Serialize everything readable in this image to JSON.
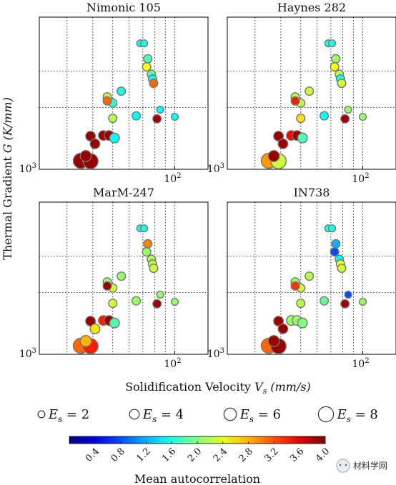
{
  "chart_data": {
    "type": "scatter",
    "panels": [
      {
        "title": "Nimonic 105",
        "points": [
          {
            "x": 35,
            "y": 1100,
            "es": 8,
            "c": 3.9
          },
          {
            "x": 39,
            "y": 1095,
            "es": 8,
            "c": 3.9
          },
          {
            "x": 37,
            "y": 1160,
            "es": 5,
            "c": 3.9
          },
          {
            "x": 39,
            "y": 1450,
            "es": 4,
            "c": 3.9
          },
          {
            "x": 41,
            "y": 1330,
            "es": 4,
            "c": 3.9
          },
          {
            "x": 45,
            "y": 1460,
            "es": 4,
            "c": 3.9
          },
          {
            "x": 48,
            "y": 1460,
            "es": 4,
            "c": 3.9
          },
          {
            "x": 51,
            "y": 1420,
            "es": 4,
            "c": 1.5
          },
          {
            "x": 47,
            "y": 2250,
            "es": 3,
            "c": 2.2
          },
          {
            "x": 50,
            "y": 2100,
            "es": 3,
            "c": 1.7
          },
          {
            "x": 50,
            "y": 1770,
            "es": 3,
            "c": 2.2
          },
          {
            "x": 47,
            "y": 2150,
            "es": 3,
            "c": 3.1
          },
          {
            "x": 55,
            "y": 2400,
            "es": 3,
            "c": 1.6
          },
          {
            "x": 65,
            "y": 1820,
            "es": 3,
            "c": 1.5
          },
          {
            "x": 68,
            "y": 4100,
            "es": 2,
            "c": 1.6
          },
          {
            "x": 71,
            "y": 4100,
            "es": 2,
            "c": 1.6
          },
          {
            "x": 74,
            "y": 3450,
            "es": 3,
            "c": 1.8
          },
          {
            "x": 73,
            "y": 3150,
            "es": 3,
            "c": 2.5
          },
          {
            "x": 77,
            "y": 2900,
            "es": 3,
            "c": 1.9
          },
          {
            "x": 78,
            "y": 2750,
            "es": 3,
            "c": 1.5
          },
          {
            "x": 79,
            "y": 2620,
            "es": 3,
            "c": 3.1
          },
          {
            "x": 82,
            "y": 1760,
            "es": 3,
            "c": 3.9
          },
          {
            "x": 85,
            "y": 1950,
            "es": 2,
            "c": 1.5
          },
          {
            "x": 100,
            "y": 1800,
            "es": 2,
            "c": 1.5
          }
        ]
      },
      {
        "title": "Haynes 282",
        "points": [
          {
            "x": 35,
            "y": 1100,
            "es": 8,
            "c": 2.9
          },
          {
            "x": 39,
            "y": 1095,
            "es": 8,
            "c": 2.3
          },
          {
            "x": 37,
            "y": 1160,
            "es": 5,
            "c": 3.9
          },
          {
            "x": 39,
            "y": 1450,
            "es": 4,
            "c": 3.9
          },
          {
            "x": 41,
            "y": 1330,
            "es": 4,
            "c": 3.9
          },
          {
            "x": 45,
            "y": 1460,
            "es": 4,
            "c": 3.5
          },
          {
            "x": 48,
            "y": 1460,
            "es": 4,
            "c": 3.9
          },
          {
            "x": 51,
            "y": 1420,
            "es": 4,
            "c": 1.8
          },
          {
            "x": 47,
            "y": 2250,
            "es": 3,
            "c": 2.2
          },
          {
            "x": 50,
            "y": 2100,
            "es": 3,
            "c": 2.2
          },
          {
            "x": 50,
            "y": 1770,
            "es": 3,
            "c": 2.6
          },
          {
            "x": 47,
            "y": 2150,
            "es": 3,
            "c": 3.4
          },
          {
            "x": 55,
            "y": 2400,
            "es": 3,
            "c": 2.3
          },
          {
            "x": 65,
            "y": 1820,
            "es": 3,
            "c": 1.5
          },
          {
            "x": 68,
            "y": 4100,
            "es": 2,
            "c": 1.6
          },
          {
            "x": 71,
            "y": 4100,
            "es": 2,
            "c": 1.6
          },
          {
            "x": 74,
            "y": 3450,
            "es": 3,
            "c": 2.1
          },
          {
            "x": 73,
            "y": 3150,
            "es": 3,
            "c": 2.5
          },
          {
            "x": 77,
            "y": 2900,
            "es": 3,
            "c": 2.2
          },
          {
            "x": 78,
            "y": 2750,
            "es": 3,
            "c": 1.6
          },
          {
            "x": 79,
            "y": 2620,
            "es": 3,
            "c": 2.3
          },
          {
            "x": 82,
            "y": 1760,
            "es": 3,
            "c": 3.9
          },
          {
            "x": 85,
            "y": 1950,
            "es": 2,
            "c": 2.1
          },
          {
            "x": 100,
            "y": 1800,
            "es": 2,
            "c": 2.1
          }
        ]
      },
      {
        "title": "MarM-247",
        "points": [
          {
            "x": 35,
            "y": 1100,
            "es": 8,
            "c": 3.1
          },
          {
            "x": 39,
            "y": 1095,
            "es": 8,
            "c": 3.4
          },
          {
            "x": 37,
            "y": 1160,
            "es": 5,
            "c": 2.8
          },
          {
            "x": 39,
            "y": 1450,
            "es": 4,
            "c": 3.9
          },
          {
            "x": 41,
            "y": 1330,
            "es": 4,
            "c": 2.6
          },
          {
            "x": 45,
            "y": 1460,
            "es": 4,
            "c": 3.4
          },
          {
            "x": 48,
            "y": 1460,
            "es": 4,
            "c": 3.9
          },
          {
            "x": 51,
            "y": 1420,
            "es": 4,
            "c": 1.8
          },
          {
            "x": 47,
            "y": 2250,
            "es": 3,
            "c": 2.1
          },
          {
            "x": 50,
            "y": 2100,
            "es": 3,
            "c": 2.3
          },
          {
            "x": 50,
            "y": 1770,
            "es": 3,
            "c": 2.3
          },
          {
            "x": 47,
            "y": 2150,
            "es": 3,
            "c": 3.9
          },
          {
            "x": 55,
            "y": 2400,
            "es": 3,
            "c": 2.1
          },
          {
            "x": 65,
            "y": 1820,
            "es": 3,
            "c": 2.1
          },
          {
            "x": 68,
            "y": 4100,
            "es": 2,
            "c": 1.6
          },
          {
            "x": 71,
            "y": 4100,
            "es": 2,
            "c": 1.6
          },
          {
            "x": 74,
            "y": 3450,
            "es": 3,
            "c": 3.0
          },
          {
            "x": 73,
            "y": 3150,
            "es": 3,
            "c": 2.1
          },
          {
            "x": 77,
            "y": 2900,
            "es": 3,
            "c": 2.2
          },
          {
            "x": 78,
            "y": 2750,
            "es": 3,
            "c": 2.2
          },
          {
            "x": 79,
            "y": 2620,
            "es": 3,
            "c": 2.3
          },
          {
            "x": 82,
            "y": 1760,
            "es": 3,
            "c": 3.9
          },
          {
            "x": 85,
            "y": 1950,
            "es": 2,
            "c": 2.1
          },
          {
            "x": 100,
            "y": 1800,
            "es": 2,
            "c": 2.1
          }
        ]
      },
      {
        "title": "IN738",
        "points": [
          {
            "x": 35,
            "y": 1100,
            "es": 8,
            "c": 3.1
          },
          {
            "x": 39,
            "y": 1095,
            "es": 8,
            "c": 3.9
          },
          {
            "x": 37,
            "y": 1160,
            "es": 5,
            "c": 3.9
          },
          {
            "x": 39,
            "y": 1450,
            "es": 4,
            "c": 3.9
          },
          {
            "x": 41,
            "y": 1330,
            "es": 4,
            "c": 3.9
          },
          {
            "x": 45,
            "y": 1460,
            "es": 4,
            "c": 2.1
          },
          {
            "x": 48,
            "y": 1460,
            "es": 4,
            "c": 2.1
          },
          {
            "x": 51,
            "y": 1420,
            "es": 4,
            "c": 2.0
          },
          {
            "x": 47,
            "y": 2250,
            "es": 3,
            "c": 2.1
          },
          {
            "x": 50,
            "y": 2100,
            "es": 3,
            "c": 2.3
          },
          {
            "x": 50,
            "y": 1770,
            "es": 3,
            "c": 2.2
          },
          {
            "x": 47,
            "y": 2150,
            "es": 3,
            "c": 3.3
          },
          {
            "x": 55,
            "y": 2400,
            "es": 3,
            "c": 2.2
          },
          {
            "x": 65,
            "y": 1820,
            "es": 3,
            "c": 1.9
          },
          {
            "x": 68,
            "y": 4100,
            "es": 2,
            "c": 1.6
          },
          {
            "x": 71,
            "y": 4100,
            "es": 2,
            "c": 1.6
          },
          {
            "x": 74,
            "y": 3450,
            "es": 3,
            "c": 1.2
          },
          {
            "x": 73,
            "y": 3150,
            "es": 3,
            "c": 0.8
          },
          {
            "x": 77,
            "y": 2900,
            "es": 3,
            "c": 1.5
          },
          {
            "x": 78,
            "y": 2750,
            "es": 3,
            "c": 2.5
          },
          {
            "x": 79,
            "y": 2620,
            "es": 3,
            "c": 2.3
          },
          {
            "x": 82,
            "y": 1760,
            "es": 3,
            "c": 3.9
          },
          {
            "x": 85,
            "y": 1950,
            "es": 2,
            "c": 0.8
          },
          {
            "x": 100,
            "y": 1800,
            "es": 2,
            "c": 2.1
          }
        ]
      }
    ],
    "xlabel_text": "Solidification Velocity ",
    "xlabel_var": "V",
    "xlabel_sub": "s",
    "xlabel_unit": " (mm/s)",
    "ylabel_text": "Thermal Gradient ",
    "ylabel_var": "G",
    "ylabel_unit": " (K/mm)",
    "x_scale": "log",
    "y_scale": "log",
    "xlim": [
      22,
      145
    ],
    "ylim": [
      1000,
      5500
    ],
    "x_ticks": [
      {
        "value": 100,
        "base": "10",
        "exp": "2"
      }
    ],
    "y_ticks": [
      {
        "value": 1000,
        "base": "10",
        "exp": "3"
      }
    ],
    "x_grid": [
      30,
      40,
      50,
      60,
      70,
      80,
      90,
      100
    ],
    "y_grid": [
      2000,
      3000
    ],
    "grid": true,
    "legend": {
      "position": "bottom",
      "entries": [
        {
          "label": "E",
          "sub": "s",
          "eq": " = 2",
          "es": 2
        },
        {
          "label": "E",
          "sub": "s",
          "eq": " = 4",
          "es": 4
        },
        {
          "label": "E",
          "sub": "s",
          "eq": " = 6",
          "es": 6
        },
        {
          "label": "E",
          "sub": "s",
          "eq": " = 8",
          "es": 8
        }
      ]
    },
    "colorbar": {
      "label": "Mean autocorrelation",
      "min": 0.0,
      "max": 4.0,
      "colormap": "jet",
      "ticks": [
        "0.4",
        "0.8",
        "1.2",
        "1.6",
        "2.0",
        "2.4",
        "2.8",
        "3.2",
        "3.6",
        "4.0"
      ]
    }
  },
  "watermark": "材料学网"
}
